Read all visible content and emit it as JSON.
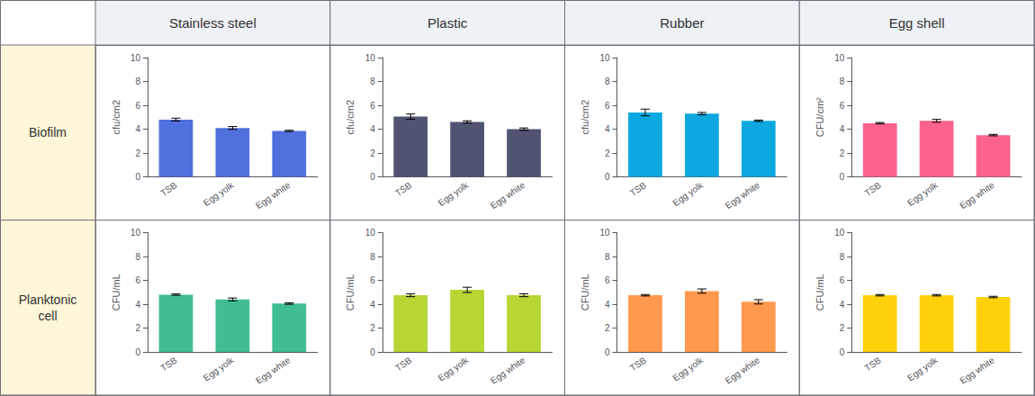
{
  "col_headers": [
    "Stainless steel",
    "Plastic",
    "Rubber",
    "Egg shell"
  ],
  "row_headers": [
    "Biofilm",
    "Planktonic\ncell"
  ],
  "chart_data": [
    {
      "type": "bar",
      "categories": [
        "TSB",
        "Egg yolk",
        "Egg white"
      ],
      "values": [
        4.8,
        4.1,
        3.85
      ],
      "errors": [
        0.12,
        0.12,
        0.05
      ],
      "ylabel": "cfu/cm2",
      "ylim": [
        0,
        10
      ],
      "yticks": [
        0,
        2,
        4,
        6,
        8,
        10
      ],
      "grid": false
    },
    {
      "type": "bar",
      "categories": [
        "TSB",
        "Egg yolk",
        "Egg white"
      ],
      "values": [
        5.05,
        4.6,
        4.0
      ],
      "errors": [
        0.22,
        0.1,
        0.1
      ],
      "ylabel": "cfu/cm2",
      "ylim": [
        0,
        10
      ],
      "yticks": [
        0,
        2,
        4,
        6,
        8,
        10
      ],
      "grid": false
    },
    {
      "type": "bar",
      "categories": [
        "TSB",
        "Egg yolk",
        "Egg white"
      ],
      "values": [
        5.4,
        5.3,
        4.7
      ],
      "errors": [
        0.28,
        0.1,
        0.06
      ],
      "ylabel": "cfu/cm2",
      "ylim": [
        0,
        10
      ],
      "yticks": [
        0,
        2,
        4,
        6,
        8,
        10
      ],
      "grid": false
    },
    {
      "type": "bar",
      "categories": [
        "TSB",
        "Egg yolk",
        "Egg white"
      ],
      "values": [
        4.5,
        4.7,
        3.5
      ],
      "errors": [
        0.06,
        0.12,
        0.06
      ],
      "ylabel": "CFU/cm²",
      "ylim": [
        0,
        10
      ],
      "yticks": [
        0,
        2,
        4,
        6,
        8,
        10
      ],
      "grid": false
    },
    {
      "type": "bar",
      "categories": [
        "TSB",
        "Egg yolk",
        "Egg white"
      ],
      "values": [
        4.8,
        4.4,
        4.05
      ],
      "errors": [
        0.06,
        0.12,
        0.06
      ],
      "ylabel": "CFU/mL",
      "ylim": [
        0,
        10
      ],
      "yticks": [
        0,
        2,
        4,
        6,
        8,
        10
      ],
      "grid": false
    },
    {
      "type": "bar",
      "categories": [
        "TSB",
        "Egg yolk",
        "Egg white"
      ],
      "values": [
        4.75,
        5.2,
        4.75
      ],
      "errors": [
        0.12,
        0.22,
        0.12
      ],
      "ylabel": "CFU/mL",
      "ylim": [
        0,
        10
      ],
      "yticks": [
        0,
        2,
        4,
        6,
        8,
        10
      ],
      "grid": false
    },
    {
      "type": "bar",
      "categories": [
        "TSB",
        "Egg yolk",
        "Egg white"
      ],
      "values": [
        4.75,
        5.1,
        4.2
      ],
      "errors": [
        0.06,
        0.18,
        0.18
      ],
      "ylabel": "CFU/mL",
      "ylim": [
        0,
        10
      ],
      "yticks": [
        0,
        2,
        4,
        6,
        8,
        10
      ],
      "grid": false
    },
    {
      "type": "bar",
      "categories": [
        "TSB",
        "Egg yolk",
        "Egg white"
      ],
      "values": [
        4.75,
        4.75,
        4.6
      ],
      "errors": [
        0.06,
        0.06,
        0.06
      ],
      "ylabel": "CFU/mL",
      "ylim": [
        0,
        10
      ],
      "yticks": [
        0,
        2,
        4,
        6,
        8,
        10
      ],
      "grid": false
    }
  ]
}
